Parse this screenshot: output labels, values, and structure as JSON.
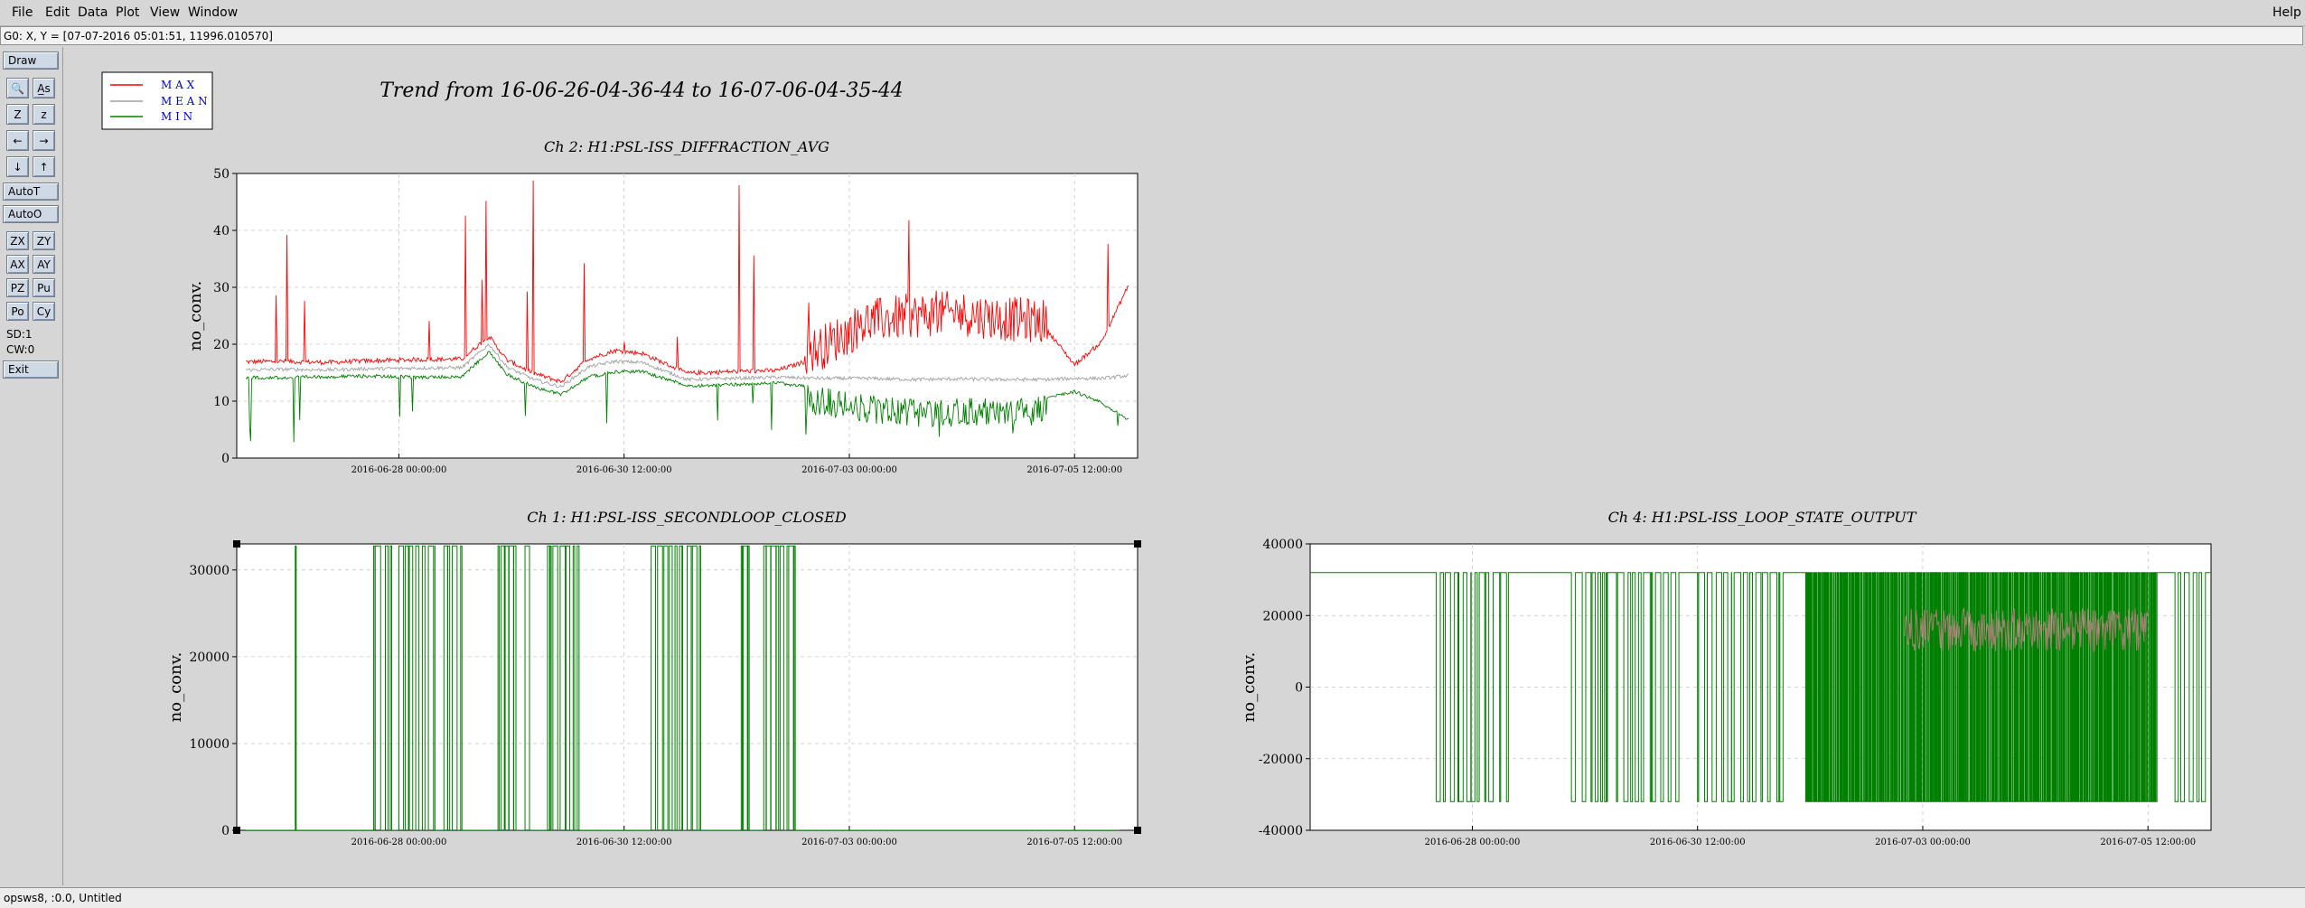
{
  "menu": {
    "items": [
      "File",
      "Edit",
      "Data",
      "Plot",
      "View",
      "Window"
    ],
    "help": "Help"
  },
  "coord_readout": "G0: X, Y = [07-07-2016 05:01:51, 11996.010570]",
  "toolbar": {
    "draw": "Draw",
    "icon_buttons": [
      {
        "name": "zoom-icon",
        "glyph": "🔍"
      },
      {
        "name": "text-size-icon",
        "glyph": "A̲s"
      },
      {
        "name": "zoom-z-large-icon",
        "glyph": "Z"
      },
      {
        "name": "zoom-z-small-icon",
        "glyph": "z"
      },
      {
        "name": "arrow-left-icon",
        "glyph": "←"
      },
      {
        "name": "arrow-right-icon",
        "glyph": "→"
      },
      {
        "name": "arrow-down-icon",
        "glyph": "↓"
      },
      {
        "name": "arrow-up-icon",
        "glyph": "↑"
      }
    ],
    "autot": "AutoT",
    "autoo": "AutoO",
    "small_buttons": [
      "ZX",
      "ZY",
      "AX",
      "AY",
      "PZ",
      "Pu",
      "Po",
      "Cy"
    ],
    "sd": "SD:1",
    "cw": "CW:0",
    "exit": "Exit"
  },
  "status": "opsws8, :0.0, Untitled",
  "colors": {
    "max": "#ff0000",
    "mean": "#a0a0a0",
    "min": "#008000"
  },
  "legend": {
    "max": "M A X",
    "mean": "M E A N",
    "min": "M I N"
  },
  "main_title": "Trend from 16-06-26-04-36-44 to 16-07-06-04-35-44",
  "chart_data": [
    {
      "type": "line",
      "title": "Ch 2: H1:PSL-ISS_DIFFRACTION_AVG",
      "xlabel": "",
      "ylabel": "no_conv.",
      "ylim": [
        0,
        50
      ],
      "yticks": [
        "0",
        "10",
        "20",
        "30",
        "40",
        "50"
      ],
      "xticks": [
        "2016-06-28 00:00:00",
        "2016-06-30 12:00:00",
        "2016-07-03 00:00:00",
        "2016-07-05 12:00:00"
      ],
      "xrange_days": [
        0,
        10
      ],
      "grid": true,
      "series": [
        {
          "name": "MAX",
          "x": [
            0.1,
            0.5,
            1.0,
            1.5,
            2.0,
            2.5,
            2.8,
            3.0,
            3.3,
            3.6,
            3.9,
            4.2,
            4.5,
            5.0,
            5.5,
            6.0,
            6.5,
            7.0,
            7.5,
            8.0,
            8.5,
            9.0,
            9.3,
            9.6,
            9.9
          ],
          "values": [
            16.5,
            16.6,
            16.4,
            16.7,
            16.9,
            17.0,
            21.0,
            16.8,
            14.5,
            13.0,
            17.0,
            18.5,
            18.0,
            14.5,
            14.8,
            15.0,
            17.5,
            22.0,
            23.0,
            23.5,
            22.5,
            22.0,
            16.0,
            20.0,
            30.0
          ]
        },
        {
          "name": "MEAN",
          "x": [
            0.1,
            0.5,
            1.0,
            1.5,
            2.0,
            2.5,
            2.8,
            3.0,
            3.3,
            3.6,
            3.9,
            4.2,
            4.5,
            5.0,
            5.5,
            6.0,
            6.5,
            7.0,
            7.5,
            8.0,
            8.5,
            9.0,
            9.3,
            9.6,
            9.9
          ],
          "values": [
            15.5,
            15.6,
            15.5,
            15.7,
            15.8,
            15.9,
            20.0,
            16.0,
            13.8,
            12.5,
            16.0,
            17.0,
            16.8,
            13.8,
            14.0,
            14.2,
            14.0,
            14.0,
            13.8,
            13.9,
            13.8,
            13.8,
            14.0,
            14.0,
            14.5
          ]
        },
        {
          "name": "MIN",
          "x": [
            0.1,
            0.5,
            1.0,
            1.5,
            2.0,
            2.5,
            2.8,
            3.0,
            3.3,
            3.6,
            3.9,
            4.2,
            4.5,
            5.0,
            5.5,
            6.0,
            6.5,
            7.0,
            7.5,
            8.0,
            8.5,
            9.0,
            9.3,
            9.6,
            9.9
          ],
          "values": [
            14.5,
            14.4,
            14.6,
            14.7,
            14.5,
            14.6,
            19.0,
            15.0,
            12.8,
            11.5,
            14.5,
            15.5,
            15.5,
            13.0,
            13.2,
            13.5,
            12.5,
            11.0,
            10.5,
            10.5,
            10.8,
            11.0,
            12.0,
            10.0,
            7.0
          ]
        }
      ]
    },
    {
      "type": "line",
      "title": "Ch 1: H1:PSL-ISS_SECONDLOOP_CLOSED",
      "xlabel": "",
      "ylabel": "no_conv.",
      "ylim": [
        0,
        33000
      ],
      "yticks": [
        "0",
        "10000",
        "20000",
        "30000"
      ],
      "xticks": [
        "2016-06-28 00:00:00",
        "2016-06-30 12:00:00",
        "2016-07-03 00:00:00",
        "2016-07-05 12:00:00"
      ],
      "xrange_days": [
        0,
        10
      ],
      "grid": true,
      "series": [
        {
          "name": "MIN",
          "segments_high": [
            [
              0.65,
              0.66
            ],
            [
              1.52,
              1.6
            ],
            [
              1.65,
              1.72
            ],
            [
              1.8,
              2.2
            ],
            [
              2.3,
              2.5
            ],
            [
              2.9,
              3.1
            ],
            [
              3.2,
              3.25
            ],
            [
              3.45,
              3.8
            ],
            [
              4.6,
              4.95
            ],
            [
              5.0,
              5.15
            ],
            [
              5.6,
              5.7
            ],
            [
              5.85,
              6.2
            ]
          ],
          "low": 0,
          "high": 32767
        }
      ]
    },
    {
      "type": "line",
      "title": "Ch 4: H1:PSL-ISS_LOOP_STATE_OUTPUT",
      "xlabel": "",
      "ylabel": "no_conv.",
      "ylim": [
        -40000,
        40000
      ],
      "yticks": [
        "-40000",
        "-20000",
        "0",
        "20000",
        "40000"
      ],
      "xticks": [
        "2016-06-28 00:00:00",
        "2016-06-30 12:00:00",
        "2016-07-03 00:00:00",
        "2016-07-05 12:00:00"
      ],
      "xrange_days": [
        0,
        10
      ],
      "grid": true,
      "series": [
        {
          "name": "MIN",
          "high": 32000,
          "low": -32000,
          "dense_ranges": [
            [
              1.4,
              2.2
            ],
            [
              2.9,
              3.3
            ],
            [
              3.4,
              4.1
            ],
            [
              4.3,
              5.3
            ],
            [
              5.5,
              9.4
            ],
            [
              9.6,
              10
            ]
          ]
        }
      ]
    }
  ]
}
